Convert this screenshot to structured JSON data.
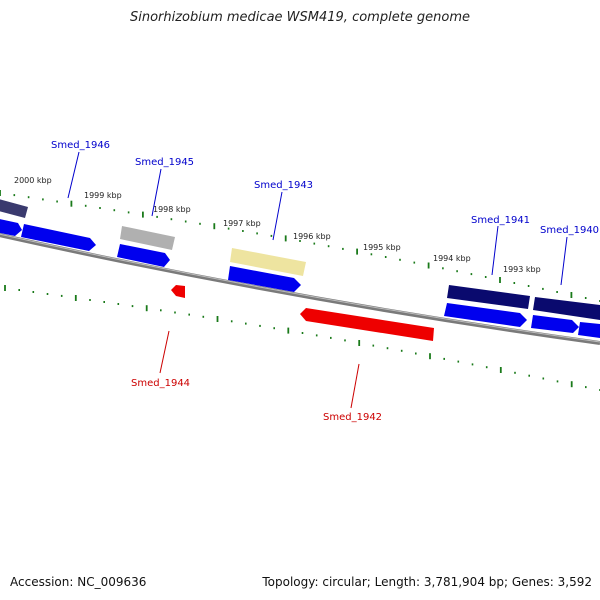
{
  "title": "Sinorhizobium medicae WSM419, complete genome",
  "footer": {
    "accession": "Accession: NC_009636",
    "summary": "Topology: circular; Length: 3,781,904 bp; Genes: 3,592"
  },
  "colors": {
    "forward_gene": "#0000ee",
    "reverse_gene": "#ee0000",
    "dark_navy_gene": "#0a0a6e",
    "slate_gene": "#3a3a6e",
    "gray_gene": "#b0b0b0",
    "yellow_gene": "#eee4a0",
    "backbone": "#808080",
    "tick": "#1a7a1a",
    "label_forward": "#0000cc",
    "label_reverse": "#cc0000"
  },
  "kbp_labels": [
    "2000 kbp",
    "1999 kbp",
    "1998 kbp",
    "1997 kbp",
    "1996 kbp",
    "1995 kbp",
    "1994 kbp",
    "1993 kbp"
  ],
  "gene_labels": [
    {
      "name": "Smed_1946",
      "strand": "forward"
    },
    {
      "name": "Smed_1945",
      "strand": "forward"
    },
    {
      "name": "Smed_1943",
      "strand": "forward"
    },
    {
      "name": "Smed_1941",
      "strand": "forward"
    },
    {
      "name": "Smed_1940",
      "strand": "forward"
    },
    {
      "name": "Smed_1944",
      "strand": "reverse"
    },
    {
      "name": "Smed_1942",
      "strand": "reverse"
    }
  ]
}
